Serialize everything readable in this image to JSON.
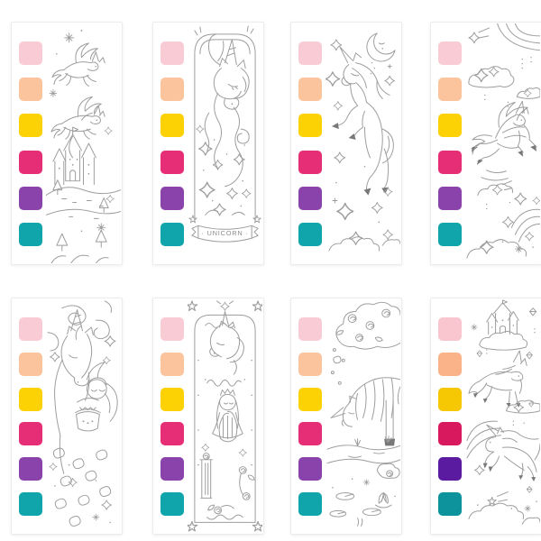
{
  "page": {
    "background_color": "#ffffff",
    "card_background": "#ffffff",
    "card_border_color": "#ececec",
    "line_art_color": "#9d9d9d"
  },
  "grid": {
    "rows": 2,
    "columns": 4
  },
  "swatch_labels": [
    "pink",
    "peach",
    "yellow",
    "magenta",
    "purple",
    "teal"
  ],
  "cards": [
    {
      "name": "castle-flying-unicorns",
      "alt": "Two winged unicorns flying above a fairytale castle on a hill with pine trees and sparkles",
      "swatches": [
        "#F9CBD5",
        "#FBC49D",
        "#FDD204",
        "#E62E76",
        "#8B43AC",
        "#0FA5AA"
      ]
    },
    {
      "name": "unicorn-banner-bookmark",
      "alt": "Unicorn head with flowing mane inside an arched bookmark frame with stars and a ribbon banner",
      "banner": "· UNICORN ·",
      "swatches": [
        "#F9CBD5",
        "#FBC49D",
        "#FDD204",
        "#E62E76",
        "#8B43AC",
        "#0FA5AA"
      ]
    },
    {
      "name": "prancing-unicorn-moon",
      "alt": "Rearing unicorn under a crescent moon with stars and clouds",
      "swatches": [
        "#F9CBD5",
        "#FBC49D",
        "#FDD204",
        "#E62E76",
        "#8B43AC",
        "#0FA5AA"
      ]
    },
    {
      "name": "pegasus-rainbow",
      "alt": "Winged unicorn leaping among rainbows, clouds and shooting stars",
      "swatches": [
        "#F9CBD5",
        "#FBC49D",
        "#FDD204",
        "#E62E76",
        "#8B43AC",
        "#0FA5AA"
      ]
    },
    {
      "name": "girl-hugging-unicorn",
      "alt": "Girl embracing a unicorn's neck amid swirling mane and falling petals",
      "swatches": [
        "#F9CBD5",
        "#FBC49D",
        "#FDD204",
        "#E62E76",
        "#8B43AC",
        "#0FA5AA"
      ]
    },
    {
      "name": "princess-harp-bookmark",
      "alt": "Ornate arched bookmark frame with unicorn above a princess playing a harp, roses and corner stars",
      "swatches": [
        "#F9CBD5",
        "#FBC49D",
        "#FDD204",
        "#E62E76",
        "#8B43AC",
        "#0FA5AA"
      ]
    },
    {
      "name": "unicorn-pond",
      "alt": "Unicorn drinking from a stream beside rose bushes, lily pads and a lotus",
      "swatches": [
        "#F9CBD5",
        "#FBC49D",
        "#FDD204",
        "#E62E76",
        "#8B43AC",
        "#0FA5AA"
      ]
    },
    {
      "name": "cloud-castle-unicorns",
      "alt": "Castle on a cloud with two unicorns, rainbow, gems and stars",
      "swatches": [
        "#F9C5CE",
        "#FAB289",
        "#F6C703",
        "#D9195E",
        "#5A1BA0",
        "#0D939B"
      ]
    }
  ]
}
